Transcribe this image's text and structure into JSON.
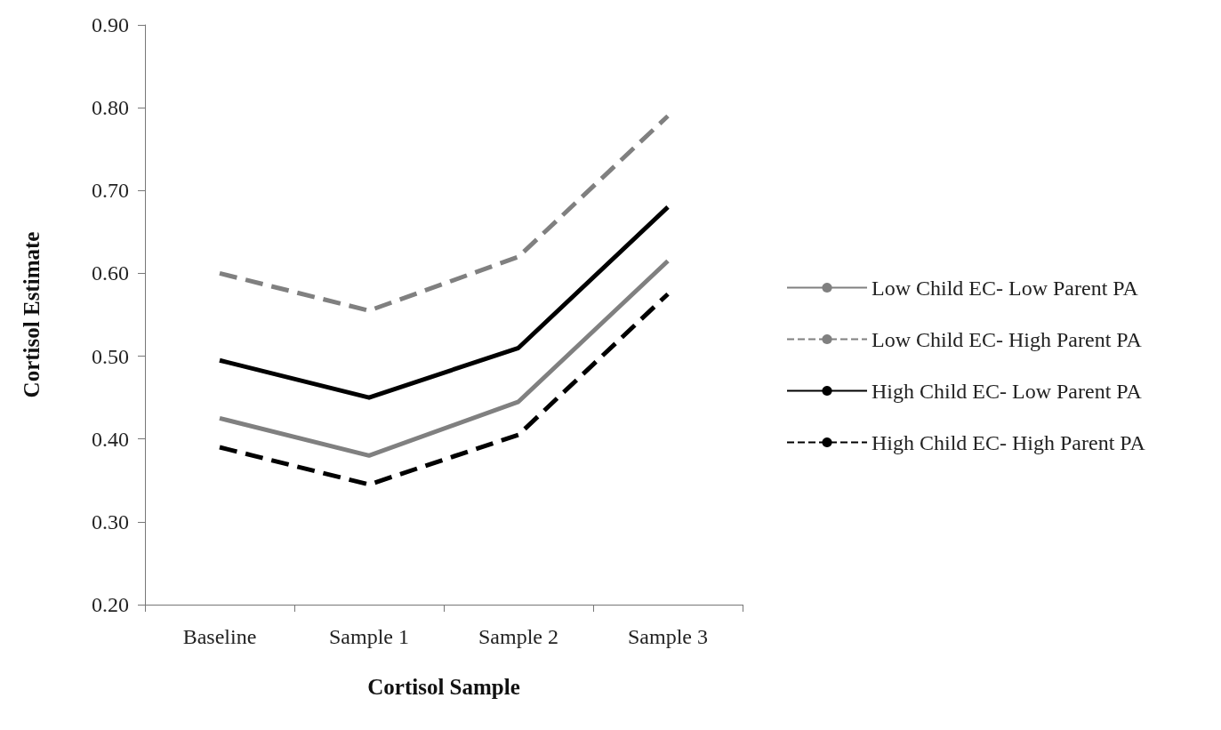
{
  "chart_data": {
    "type": "line",
    "xlabel": "Cortisol Sample",
    "ylabel": "Cortisol Estimate",
    "categories": [
      "Baseline",
      "Sample 1",
      "Sample 2",
      "Sample 3"
    ],
    "ylim": [
      0.2,
      0.9
    ],
    "yticks": [
      {
        "value": 0.2,
        "label": "0.20"
      },
      {
        "value": 0.3,
        "label": "0.30"
      },
      {
        "value": 0.4,
        "label": "0.40"
      },
      {
        "value": 0.5,
        "label": "0.50"
      },
      {
        "value": 0.6,
        "label": "0.60"
      },
      {
        "value": 0.7,
        "label": "0.70"
      },
      {
        "value": 0.8,
        "label": "0.80"
      },
      {
        "value": 0.9,
        "label": "0.90"
      }
    ],
    "grid": false,
    "legend": "right",
    "marker": "none",
    "series": [
      {
        "name": "Low Child EC- Low Parent PA",
        "color": "#808080",
        "line_style": "solid",
        "values": [
          0.425,
          0.38,
          0.445,
          0.615
        ]
      },
      {
        "name": "Low Child EC- High Parent PA",
        "color": "#808080",
        "line_style": "dashed",
        "values": [
          0.6,
          0.555,
          0.62,
          0.79
        ]
      },
      {
        "name": "High Child EC- Low Parent PA",
        "color": "#000000",
        "line_style": "solid",
        "values": [
          0.495,
          0.45,
          0.51,
          0.68
        ]
      },
      {
        "name": "High Child EC- High Parent PA",
        "color": "#000000",
        "line_style": "dashed",
        "values": [
          0.39,
          0.345,
          0.405,
          0.575
        ]
      }
    ]
  }
}
